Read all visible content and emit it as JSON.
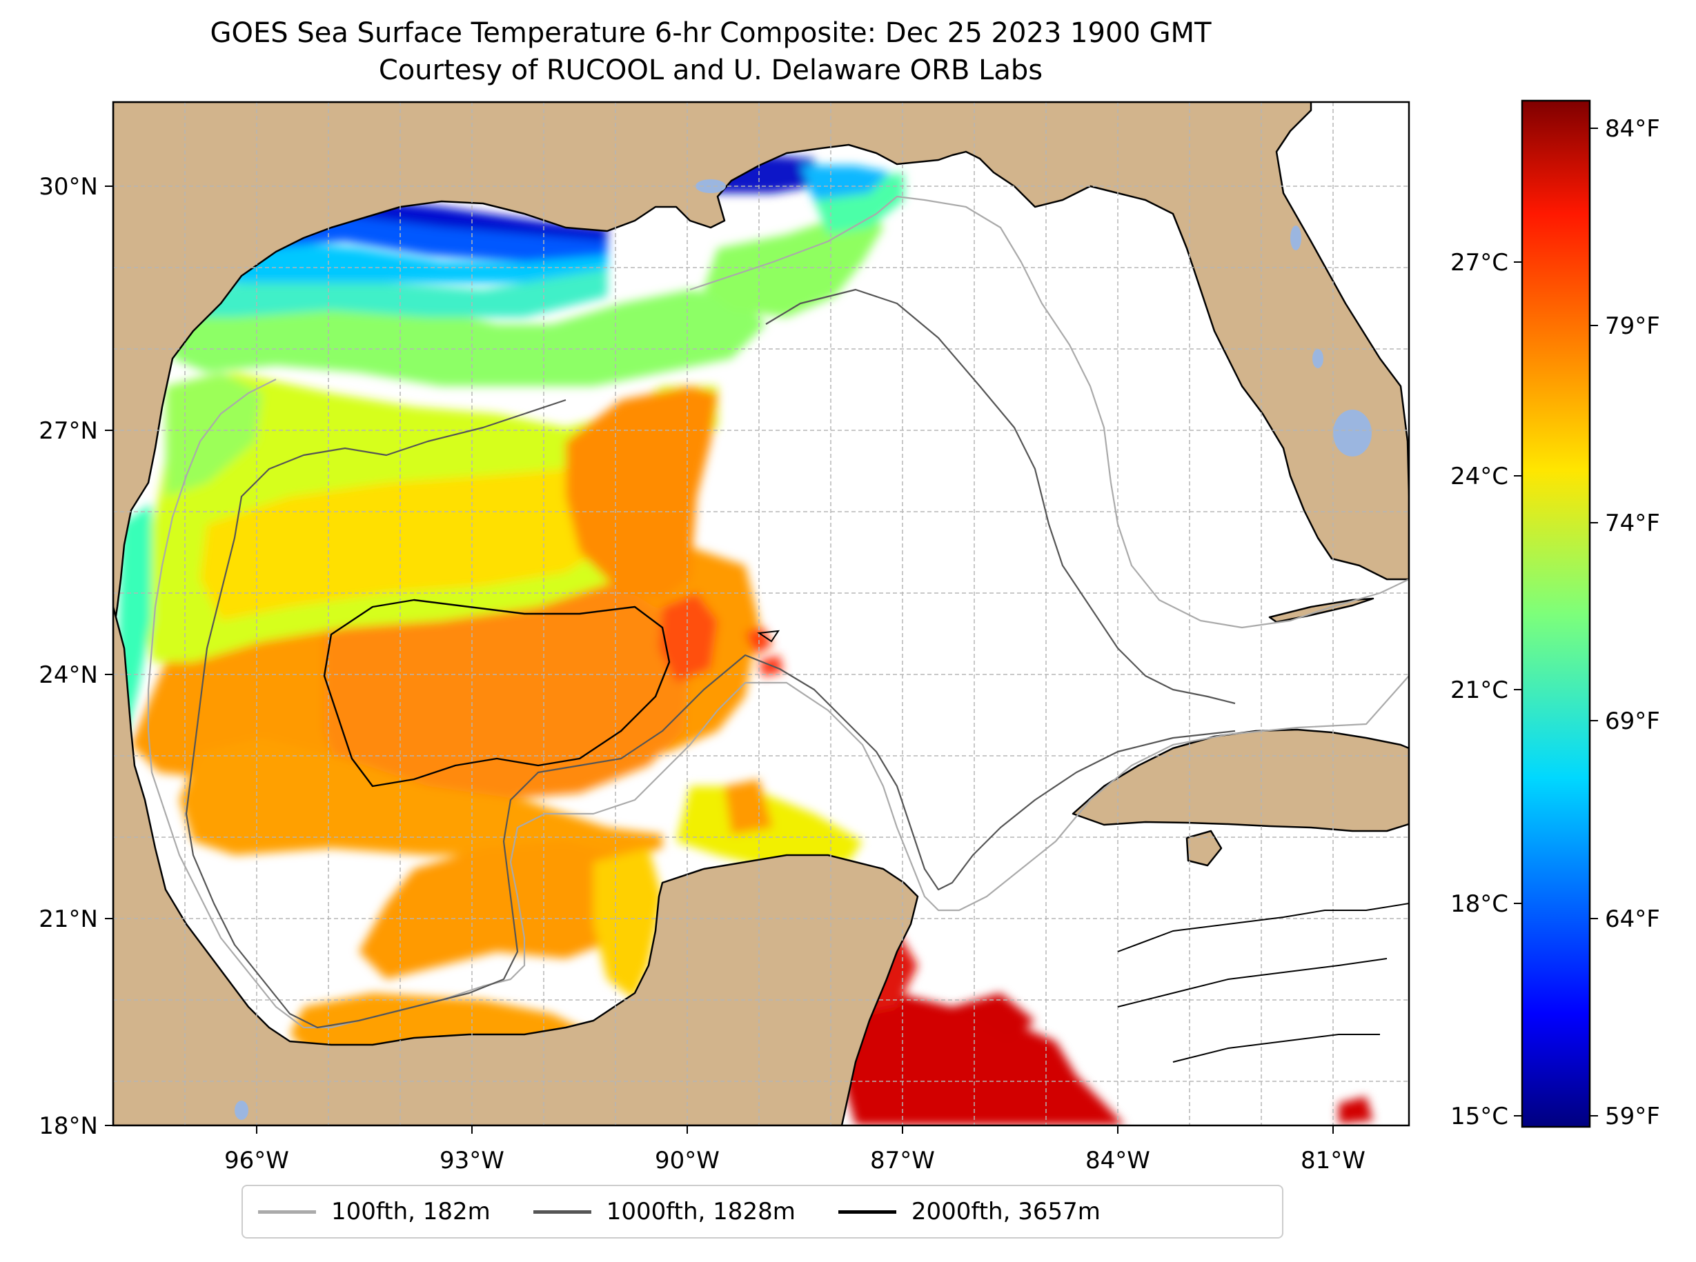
{
  "title": {
    "line1": "GOES Sea Surface Temperature 6-hr Composite: Dec 25 2023 1900 GMT",
    "line2": "Courtesy of RUCOOL and U. Delaware ORB Labs"
  },
  "map": {
    "lon_range": [
      -98,
      -80
    ],
    "lat_range": [
      18,
      31
    ],
    "lat_ticks": [
      {
        "value": 30,
        "label": "30°N"
      },
      {
        "value": 27,
        "label": "27°N"
      },
      {
        "value": 24,
        "label": "24°N"
      },
      {
        "value": 21,
        "label": "21°N"
      },
      {
        "value": 18,
        "label": "18°N"
      }
    ],
    "lon_ticks": [
      {
        "value": -96,
        "label": "96°W"
      },
      {
        "value": -93,
        "label": "93°W"
      },
      {
        "value": -90,
        "label": "90°W"
      },
      {
        "value": -87,
        "label": "87°W"
      },
      {
        "value": -84,
        "label": "84°W"
      },
      {
        "value": -81,
        "label": "81°W"
      }
    ],
    "colors": {
      "land": "#d2b48c",
      "water_bodies": "#9bb6e0",
      "gridlines": "#b5b5b5"
    }
  },
  "colorbar": {
    "colormap": "jet",
    "range_c": [
      15,
      29.2
    ],
    "celsius_ticks": [
      {
        "value": 15,
        "label": "15°C"
      },
      {
        "value": 18,
        "label": "18°C"
      },
      {
        "value": 21,
        "label": "21°C"
      },
      {
        "value": 24,
        "label": "24°C"
      },
      {
        "value": 27,
        "label": "27°C"
      }
    ],
    "fahrenheit_ticks": [
      {
        "value": 59,
        "label": "59°F"
      },
      {
        "value": 64,
        "label": "64°F"
      },
      {
        "value": 69,
        "label": "69°F"
      },
      {
        "value": 74,
        "label": "74°F"
      },
      {
        "value": 79,
        "label": "79°F"
      },
      {
        "value": 84,
        "label": "84°F"
      }
    ]
  },
  "legend": {
    "items": [
      {
        "label": "100fth, 182m",
        "color": "#aaaaaa"
      },
      {
        "label": "1000fth, 1828m",
        "color": "#555555"
      },
      {
        "label": "2000fth, 3657m",
        "color": "#000000"
      }
    ]
  }
}
